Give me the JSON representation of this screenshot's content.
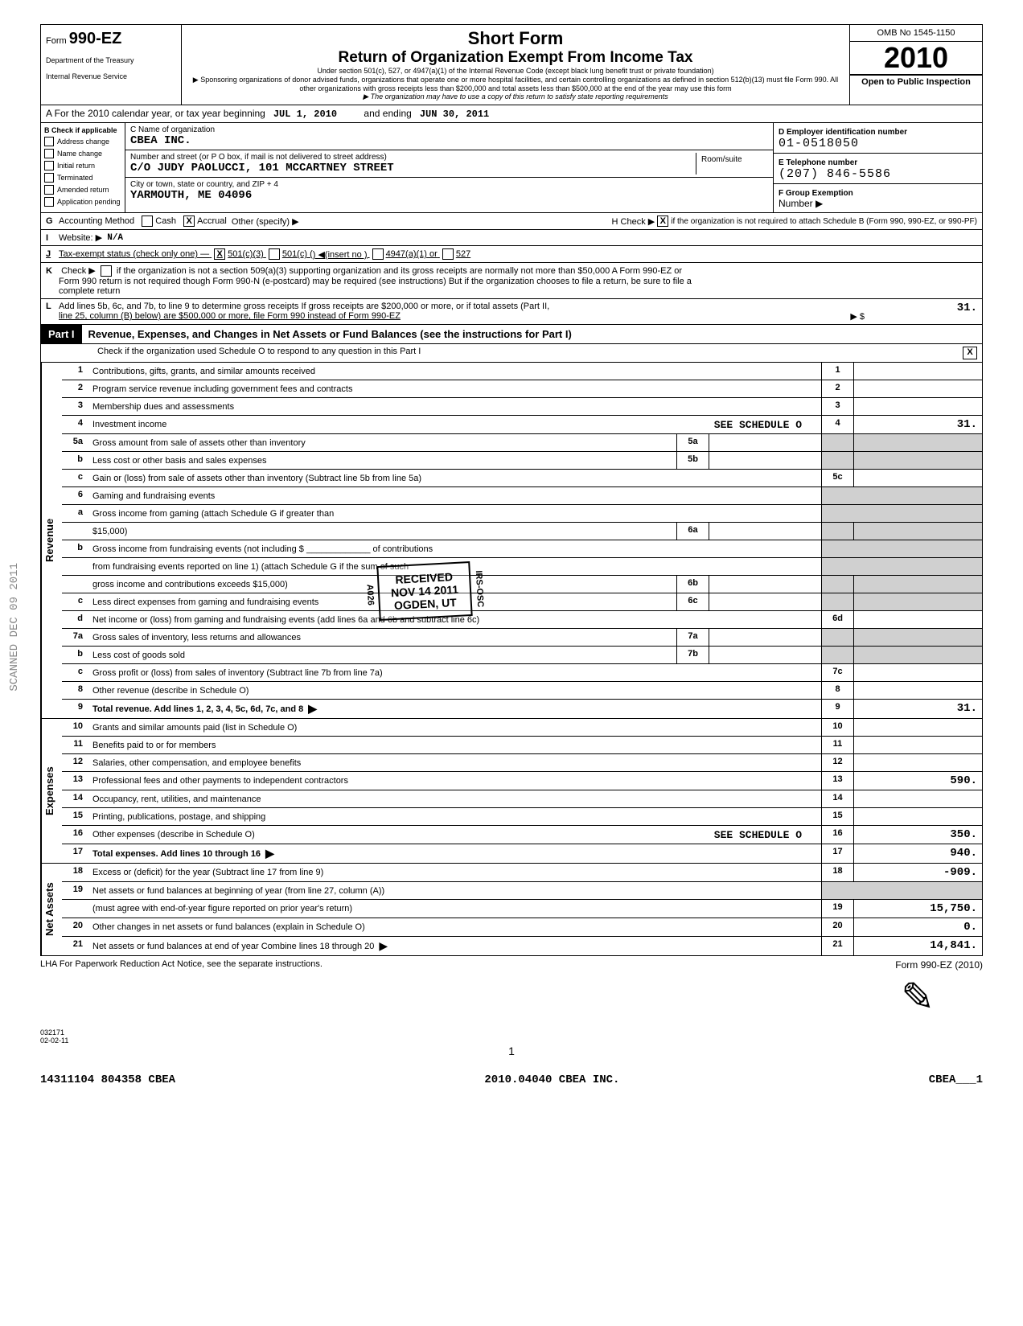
{
  "header": {
    "form_label": "Form",
    "form_number": "990-EZ",
    "dept": "Department of the Treasury",
    "irs": "Internal Revenue Service",
    "short_form": "Short Form",
    "title": "Return of Organization Exempt From Income Tax",
    "subtitle1": "Under section 501(c), 527, or 4947(a)(1) of the Internal Revenue Code (except black lung benefit trust or private foundation)",
    "subtitle2": "▶ Sponsoring organizations of donor advised funds, organizations that operate one or more hospital facilities, and certain controlling organizations as defined in section 512(b)(13) must file Form 990. All other organizations with gross receipts less than $200,000 and total assets less than $500,000 at the end of the year may use this form",
    "subtitle3": "▶ The organization may have to use a copy of this return to satisfy state reporting requirements",
    "omb": "OMB No 1545-1150",
    "year": "2010",
    "open": "Open to Public Inspection"
  },
  "lineA": {
    "prefix": "A    For the 2010 calendar year, or tax year beginning",
    "begin": "JUL 1, 2010",
    "mid": "and ending",
    "end": "JUN 30, 2011"
  },
  "id": {
    "b_label": "B",
    "check_if": "Check if applicable",
    "checks": [
      "Address change",
      "Name change",
      "Initial return",
      "Terminated",
      "Amended return",
      "Application pending"
    ],
    "c_label": "C Name of organization",
    "org_name": "CBEA INC.",
    "addr_hint": "Number and street (or P O box, if mail is not delivered to street address)",
    "addr": "C/O JUDY PAOLUCCI, 101 MCCARTNEY STREET",
    "room_hint": "Room/suite",
    "city_hint": "City or town, state or country, and ZIP + 4",
    "city": "YARMOUTH, ME  04096",
    "d_label": "D Employer identification number",
    "ein": "01-0518050",
    "e_label": "E  Telephone number",
    "phone": "(207) 846-5586",
    "f_label": "F  Group Exemption",
    "f_sub": "Number ▶"
  },
  "lineG": {
    "letter": "G",
    "text": "Accounting Method",
    "cash": "Cash",
    "accrual": "Accrual",
    "other": "Other (specify) ▶",
    "h_text": "H Check ▶",
    "h_tail": "if the organization is not required to attach Schedule B (Form 990, 990-EZ, or 990-PF)"
  },
  "lineI": {
    "letter": "I",
    "text": "Website: ▶",
    "val": "N/A"
  },
  "lineJ": {
    "letter": "J",
    "text": "Tax-exempt status (check only one) —",
    "opt1": "501(c)(3)",
    "opt2": "501(c) (",
    "insert": ") ◀(insert no )",
    "opt3": "4947(a)(1) or",
    "opt4": "527"
  },
  "lineK": {
    "letter": "K",
    "text1": "Check ▶",
    "text2": "if the organization is not a section 509(a)(3) supporting organization and its gross receipts are normally not more than $50,000  A Form 990-EZ or",
    "text3": "Form 990 return is not required though Form 990-N (e-postcard) may be required (see instructions)  But if the organization chooses to file a return, be sure to file a",
    "text4": "complete return"
  },
  "lineL": {
    "letter": "L",
    "text1": "Add lines 5b, 6c, and 7b, to line 9 to determine gross receipts  If gross receipts are $200,000 or more, or if total assets (Part II,",
    "text2": "line 25, column (B) below) are $500,000 or more, file Form 990 instead of Form 990-EZ",
    "arrow": "▶  $",
    "amount": "31."
  },
  "part1": {
    "label": "Part I",
    "title": "Revenue, Expenses, and Changes in Net Assets or Fund Balances (see the instructions for Part I)",
    "sub": "Check if the organization used Schedule O to respond to any question in this Part I",
    "sub_check": "X"
  },
  "sections": {
    "revenue": "Revenue",
    "expenses": "Expenses",
    "netassets": "Net Assets"
  },
  "rows": [
    {
      "n": "1",
      "desc": "Contributions, gifts, grants, and similar amounts received",
      "code": "1",
      "val": ""
    },
    {
      "n": "2",
      "desc": "Program service revenue including government fees and contracts",
      "code": "2",
      "val": ""
    },
    {
      "n": "3",
      "desc": "Membership dues and assessments",
      "code": "3",
      "val": ""
    },
    {
      "n": "4",
      "desc": "Investment income",
      "note": "SEE SCHEDULE O",
      "code": "4",
      "val": "31."
    },
    {
      "n": "5a",
      "desc": "Gross amount from sale of assets other than inventory",
      "midcode": "5a",
      "shade": true
    },
    {
      "n": "b",
      "desc": "Less cost or other basis and sales expenses",
      "midcode": "5b",
      "shade": true
    },
    {
      "n": "c",
      "desc": "Gain or (loss) from sale of assets other than inventory (Subtract line 5b from line 5a)",
      "code": "5c",
      "val": ""
    },
    {
      "n": "6",
      "desc": "Gaming and fundraising events",
      "shade": true,
      "noboxes": true
    },
    {
      "n": "a",
      "desc": "Gross income from gaming (attach Schedule G if greater than",
      "shade": true,
      "noboxes": true
    },
    {
      "n": "",
      "desc": "$15,000)",
      "midcode": "6a",
      "shade": true
    },
    {
      "n": "b",
      "desc": "Gross income from fundraising events (not including $ _____________ of contributions",
      "shade": true,
      "noboxes": true
    },
    {
      "n": "",
      "desc": "from fundraising events reported on line 1) (attach Schedule G if the sum of such",
      "shade": true,
      "noboxes": true
    },
    {
      "n": "",
      "desc": "gross income and contributions exceeds $15,000)",
      "midcode": "6b",
      "shade": true
    },
    {
      "n": "c",
      "desc": "Less direct expenses from gaming and fundraising events",
      "midcode": "6c",
      "shade": true
    },
    {
      "n": "d",
      "desc": "Net income or (loss) from gaming and fundraising events (add lines 6a and 6b and subtract line 6c)",
      "code": "6d",
      "val": ""
    },
    {
      "n": "7a",
      "desc": "Gross sales of inventory, less returns and allowances",
      "midcode": "7a",
      "shade": true
    },
    {
      "n": "b",
      "desc": "Less cost of goods sold",
      "midcode": "7b",
      "shade": true
    },
    {
      "n": "c",
      "desc": "Gross profit or (loss) from sales of inventory (Subtract line 7b from line 7a)",
      "code": "7c",
      "val": ""
    },
    {
      "n": "8",
      "desc": "Other revenue (describe in Schedule O)",
      "code": "8",
      "val": ""
    },
    {
      "n": "9",
      "desc": "Total revenue. Add lines 1, 2, 3, 4, 5c, 6d, 7c, and 8",
      "bold": true,
      "arrow": true,
      "code": "9",
      "val": "31."
    }
  ],
  "exp_rows": [
    {
      "n": "10",
      "desc": "Grants and similar amounts paid (list in Schedule O)",
      "code": "10",
      "val": ""
    },
    {
      "n": "11",
      "desc": "Benefits paid to or for members",
      "code": "11",
      "val": ""
    },
    {
      "n": "12",
      "desc": "Salaries, other compensation, and employee benefits",
      "code": "12",
      "val": ""
    },
    {
      "n": "13",
      "desc": "Professional fees and other payments to independent contractors",
      "code": "13",
      "val": "590."
    },
    {
      "n": "14",
      "desc": "Occupancy, rent, utilities, and maintenance",
      "code": "14",
      "val": ""
    },
    {
      "n": "15",
      "desc": "Printing, publications, postage, and shipping",
      "code": "15",
      "val": ""
    },
    {
      "n": "16",
      "desc": "Other expenses (describe in Schedule O)",
      "note": "SEE SCHEDULE O",
      "code": "16",
      "val": "350."
    },
    {
      "n": "17",
      "desc": "Total expenses. Add lines 10 through 16",
      "bold": true,
      "arrow": true,
      "code": "17",
      "val": "940."
    }
  ],
  "na_rows": [
    {
      "n": "18",
      "desc": "Excess or (deficit) for the year (Subtract line 17 from line 9)",
      "code": "18",
      "val": "-909."
    },
    {
      "n": "19",
      "desc": "Net assets or fund balances at beginning of year (from line 27, column (A))",
      "shade": true,
      "noboxes": true
    },
    {
      "n": "",
      "desc": "(must agree with end-of-year figure reported on prior year's return)",
      "code": "19",
      "val": "15,750."
    },
    {
      "n": "20",
      "desc": "Other changes in net assets or fund balances (explain in Schedule O)",
      "code": "20",
      "val": "0."
    },
    {
      "n": "21",
      "desc": "Net assets or fund balances at end of year  Combine lines 18 through 20",
      "arrow": true,
      "code": "21",
      "val": "14,841."
    }
  ],
  "footer": {
    "lha": "LHA   For Paperwork Reduction Act Notice, see the separate instructions.",
    "form": "Form 990-EZ (2010)",
    "code": "032171\n02-02-11",
    "page": "1",
    "bottom_left": "14311104 804358 CBEA",
    "bottom_mid": "2010.04040 CBEA INC.",
    "bottom_right": "CBEA___1"
  },
  "stamp": {
    "l1": "RECEIVED",
    "l2": "NOV 14 2011",
    "l3": "OGDEN, UT",
    "side": "IRS-OSC",
    "side2": "A026"
  },
  "side_scan": "SCANNED DEC 09 2011"
}
